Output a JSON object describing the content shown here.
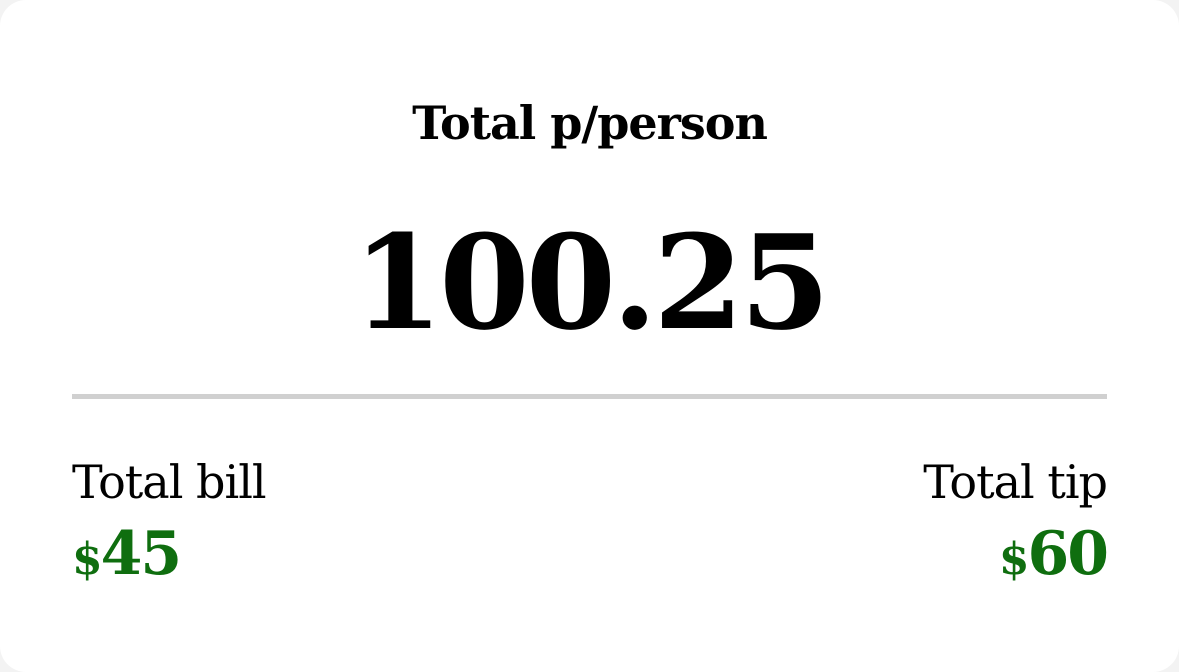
{
  "summary": {
    "heading": "Total p/person",
    "per_person_value": "100.25"
  },
  "totals": {
    "bill": {
      "label": "Total bill",
      "currency": "$",
      "amount": "45"
    },
    "tip": {
      "label": "Total tip",
      "currency": "$",
      "amount": "60"
    }
  },
  "colors": {
    "amount_green": "#0f6e0f",
    "divider": "#d0d0d0",
    "text": "#000000",
    "card_background": "#ffffff"
  }
}
